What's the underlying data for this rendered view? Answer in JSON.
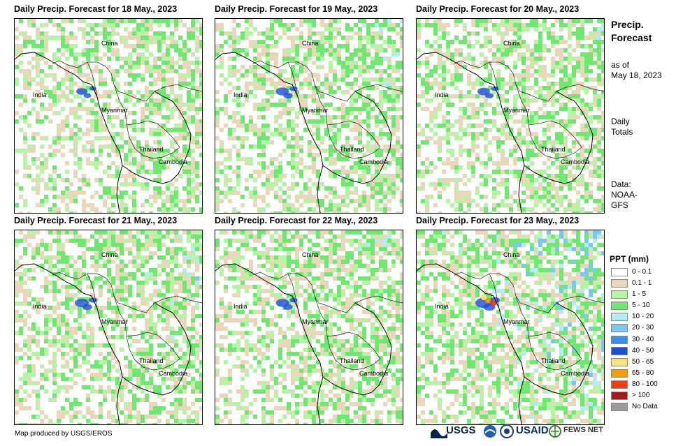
{
  "panels": [
    {
      "title": "Daily Precip. Forecast for 18 May., 2023",
      "intensity": 0.2
    },
    {
      "title": "Daily Precip. Forecast for 19 May., 2023",
      "intensity": 0.35
    },
    {
      "title": "Daily Precip. Forecast for 20 May., 2023",
      "intensity": 0.3
    },
    {
      "title": "Daily Precip. Forecast for 21 May., 2023",
      "intensity": 0.4
    },
    {
      "title": "Daily Precip. Forecast for 22 May., 2023",
      "intensity": 0.35
    },
    {
      "title": "Daily Precip. Forecast for 23 May., 2023",
      "intensity": 0.6
    }
  ],
  "places": {
    "china": "China",
    "india": "India",
    "myanmar": "Myanmar",
    "thailand": "Thailand",
    "cambodia": "Cambodia"
  },
  "side": {
    "title_line1": "Precip.",
    "title_line2": "Forecast",
    "asof_line1": "as of",
    "asof_line2": "May 18, 2023",
    "daily_line1": "Daily",
    "daily_line2": "Totals",
    "data_line1": "Data:",
    "data_line2": "NOAA-",
    "data_line3": "GFS"
  },
  "legend": {
    "title": "PPT (mm)",
    "items": [
      {
        "label": "0 - 0.1",
        "color": "#ffffff"
      },
      {
        "label": "0.1 - 1",
        "color": "#ead6b8"
      },
      {
        "label": "1 - 5",
        "color": "#b4f5a4"
      },
      {
        "label": "5 - 10",
        "color": "#6ee870"
      },
      {
        "label": "10 - 20",
        "color": "#b4ecf5"
      },
      {
        "label": "20 - 30",
        "color": "#7cc6f2"
      },
      {
        "label": "30 - 40",
        "color": "#3c8ee8"
      },
      {
        "label": "40 - 50",
        "color": "#1c4fd8"
      },
      {
        "label": "50 - 65",
        "color": "#f8e27c"
      },
      {
        "label": "65 - 80",
        "color": "#f2a000"
      },
      {
        "label": "80 - 100",
        "color": "#ee3c10"
      },
      {
        "label": "> 100",
        "color": "#a81a1a"
      },
      {
        "label": "No Data",
        "color": "#9a9a9a"
      }
    ]
  },
  "credit": "Map produced by USGS/EROS",
  "logos": {
    "usgs": "USGS",
    "usaid": "USAID",
    "fewsnet": "FEWS NET"
  }
}
